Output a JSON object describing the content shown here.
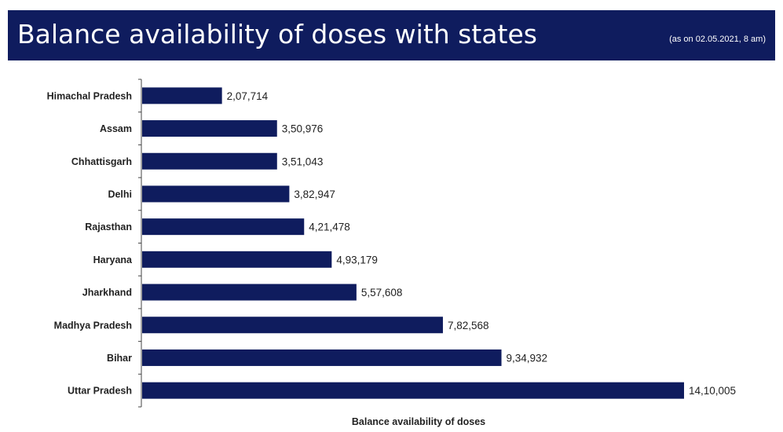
{
  "header": {
    "title": "Balance availability of doses with states",
    "date_note": "(as on 02.05.2021, 8 am)",
    "background_color": "#0f1c5e"
  },
  "chart_data": {
    "type": "bar",
    "orientation": "horizontal",
    "title": "",
    "xlabel": "Balance availability of doses",
    "ylabel": "",
    "grid": false,
    "bar_color": "#0f1c5e",
    "xlim": [
      0,
      1450000
    ],
    "categories": [
      "Himachal Pradesh",
      "Assam",
      "Chhattisgarh",
      "Delhi",
      "Rajasthan",
      "Haryana",
      "Jharkhand",
      "Madhya Pradesh",
      "Bihar",
      "Uttar Pradesh"
    ],
    "values": [
      207714,
      350976,
      351043,
      382947,
      421478,
      493179,
      557608,
      782568,
      934932,
      1410005
    ],
    "value_labels": [
      "2,07,714",
      "3,50,976",
      "3,51,043",
      "3,82,947",
      "4,21,478",
      "4,93,179",
      "5,57,608",
      "7,82,568",
      "9,34,932",
      "14,10,005"
    ]
  }
}
